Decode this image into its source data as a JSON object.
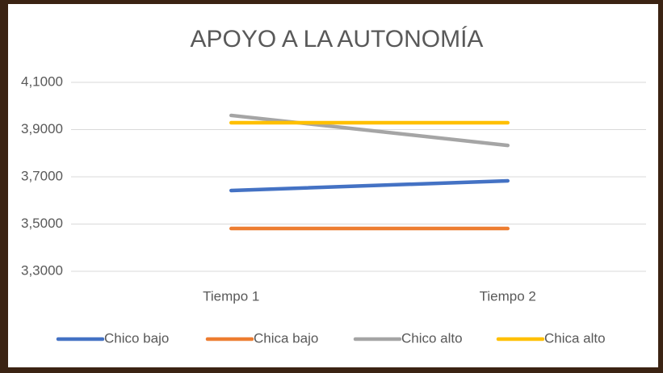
{
  "chart_data": {
    "type": "line",
    "title": "APOYO A LA AUTONOMÍA",
    "categories": [
      "Tiempo 1",
      "Tiempo 2"
    ],
    "series": [
      {
        "name": "Chico bajo",
        "color": "#4472c4",
        "values": [
          3.642,
          3.683
        ]
      },
      {
        "name": "Chica bajo",
        "color": "#ed7d31",
        "values": [
          3.481,
          3.481
        ]
      },
      {
        "name": "Chico alto",
        "color": "#a5a5a5",
        "values": [
          3.96,
          3.833
        ]
      },
      {
        "name": "Chica alto",
        "color": "#ffc000",
        "values": [
          3.929,
          3.929
        ]
      }
    ],
    "ylim": [
      3.3,
      4.1
    ],
    "yticks": [
      {
        "value": 3.3,
        "label": "3,3000"
      },
      {
        "value": 3.5,
        "label": "3,5000"
      },
      {
        "value": 3.7,
        "label": "3,7000"
      },
      {
        "value": 3.9,
        "label": "3,9000"
      },
      {
        "value": 4.1,
        "label": "4,1000"
      }
    ],
    "grid": true,
    "legend": "bottom"
  }
}
